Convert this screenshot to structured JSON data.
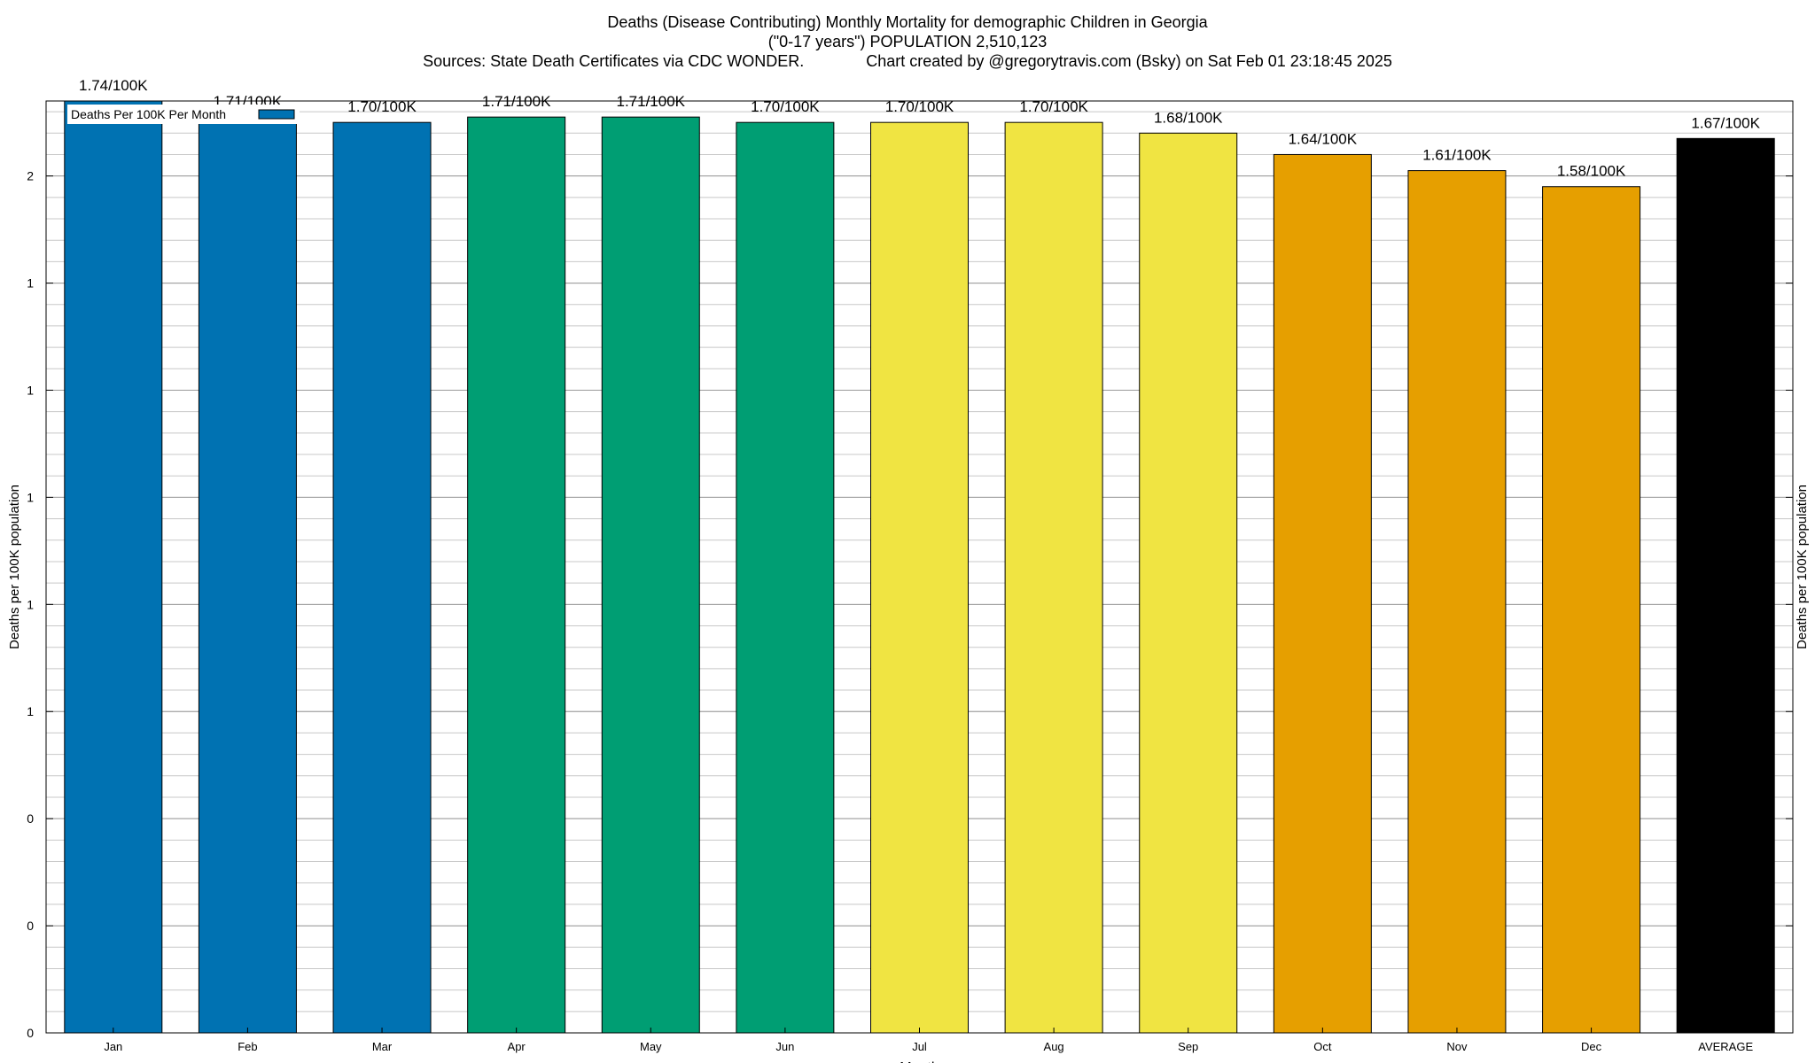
{
  "chart_data": {
    "type": "bar",
    "title_line1": "Deaths (Disease Contributing) Monthly Mortality for demographic Children in Georgia",
    "title_line2": "(\"0-17 years\") POPULATION 2,510,123",
    "title_line3_left": "Sources: State Death Certificates via CDC WONDER.",
    "title_line3_right": "Chart created by @gregorytravis.com (Bsky) on Sat Feb 01 23:18:45 2025",
    "xlabel": "Month",
    "ylabel_left": "Deaths per 100K population",
    "ylabel_right": "Deaths per 100K population",
    "legend": "Deaths Per 100K Per Month",
    "categories": [
      "Jan",
      "Feb",
      "Mar",
      "Apr",
      "May",
      "Jun",
      "Jul",
      "Aug",
      "Sep",
      "Oct",
      "Nov",
      "Dec",
      "AVERAGE"
    ],
    "values": [
      1.74,
      1.71,
      1.7,
      1.71,
      1.71,
      1.7,
      1.7,
      1.7,
      1.68,
      1.64,
      1.61,
      1.58,
      1.67
    ],
    "value_labels": [
      "1.74/100K",
      "1.71/100K",
      "1.70/100K",
      "1.71/100K",
      "1.71/100K",
      "1.70/100K",
      "1.70/100K",
      "1.70/100K",
      "1.68/100K",
      "1.64/100K",
      "1.61/100K",
      "1.58/100K",
      "1.67/100K"
    ],
    "colors": [
      "#0072b2",
      "#0072b2",
      "#0072b2",
      "#009e73",
      "#009e73",
      "#009e73",
      "#f0e442",
      "#f0e442",
      "#f0e442",
      "#e69f00",
      "#e69f00",
      "#e69f00",
      "#000000"
    ],
    "ytick_labels": [
      "0",
      "0",
      "0",
      "1",
      "1",
      "1",
      "1",
      "1",
      "2"
    ],
    "ytick_values": [
      0,
      0.2,
      0.4,
      0.6,
      0.8,
      1.0,
      1.2,
      1.4,
      1.6
    ],
    "ylim": [
      0,
      1.74
    ],
    "grid": "horizontal"
  }
}
